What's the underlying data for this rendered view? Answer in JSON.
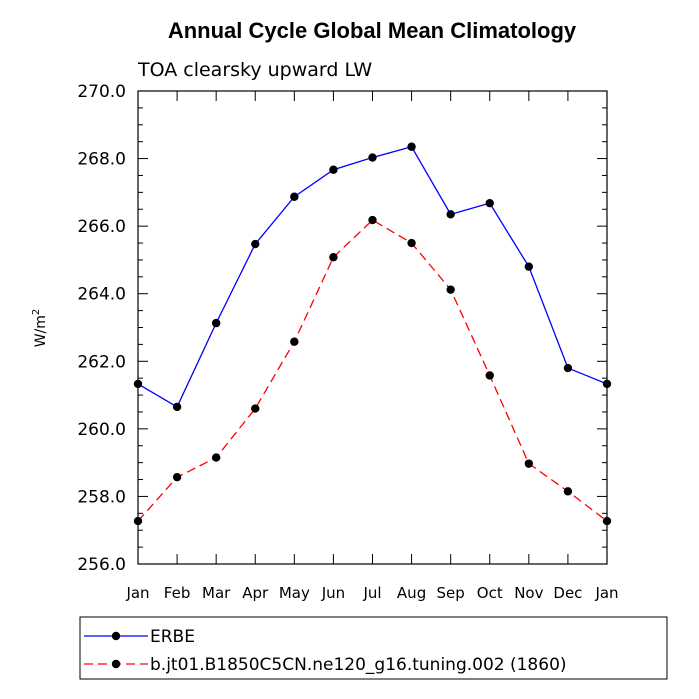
{
  "chart_data": {
    "type": "line",
    "title": "Annual Cycle Global Mean Climatology",
    "subtitle": "TOA clearsky upward LW",
    "ylabel_base": "W/m",
    "ylabel_sup": "2",
    "ylim": [
      256.0,
      270.0
    ],
    "yticks": [
      "256.0",
      "258.0",
      "260.0",
      "262.0",
      "264.0",
      "266.0",
      "268.0",
      "270.0"
    ],
    "categories": [
      "Jan",
      "Feb",
      "Mar",
      "Apr",
      "May",
      "Jun",
      "Jul",
      "Aug",
      "Sep",
      "Oct",
      "Nov",
      "Dec",
      "Jan"
    ],
    "grid": false,
    "legend_position": "bottom",
    "series": [
      {
        "name": "ERBE",
        "color": "#0000ff",
        "dash": "solid",
        "values": [
          261.33,
          260.65,
          263.13,
          265.47,
          266.87,
          267.67,
          268.03,
          268.35,
          266.35,
          266.68,
          264.8,
          261.8,
          261.33
        ]
      },
      {
        "name": "b.jt01.B1850C5CN.ne120_g16.tuning.002 (1860)",
        "color": "#ff0000",
        "dash": "dashed",
        "values": [
          257.27,
          258.57,
          259.15,
          260.6,
          262.58,
          265.08,
          266.18,
          265.5,
          264.12,
          261.58,
          258.97,
          258.15,
          257.27
        ]
      }
    ]
  }
}
